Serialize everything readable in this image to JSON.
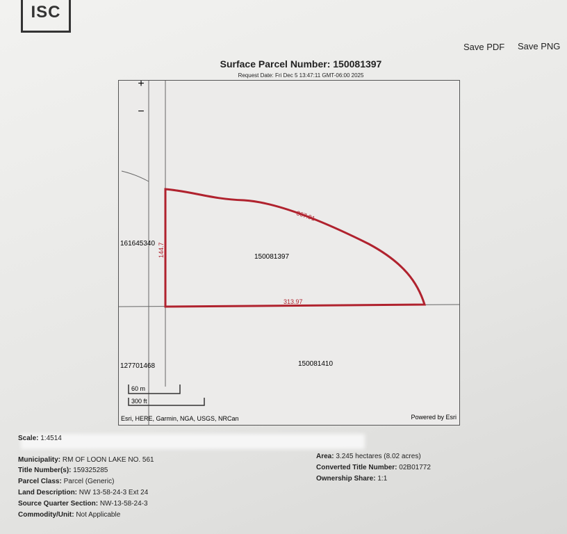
{
  "header": {
    "logo": "ISC",
    "save_pdf": "Save PDF",
    "save_png": "Save PNG",
    "title": "Surface Parcel Number: 150081397",
    "request_date": "Request Date: Fri Dec 5 13:47:11 GMT-06:00 2025"
  },
  "map": {
    "zoom_in": "+",
    "zoom_out": "−",
    "parcels": [
      "161645340",
      "150081397",
      "127701468",
      "150081410"
    ],
    "dimensions": [
      "367.91",
      "144.7",
      "313.97"
    ],
    "scale_bar": [
      "60 m",
      "300 ft"
    ],
    "attribution": "Esri, HERE, Garmin, NGA, USGS, NRCan",
    "powered_by": "Powered by Esri"
  },
  "details": {
    "left": [
      [
        "Scale:",
        "1:4514"
      ],
      [
        "Municipality:",
        "RM OF LOON LAKE NO. 561"
      ],
      [
        "Title Number(s):",
        "159325285"
      ],
      [
        "Parcel Class:",
        "Parcel (Generic)"
      ],
      [
        "Land Description:",
        "NW 13-58-24-3 Ext 24"
      ],
      [
        "Source Quarter Section:",
        "NW-13-58-24-3"
      ],
      [
        "Commodity/Unit:",
        "Not Applicable"
      ]
    ],
    "right": [
      [
        "Area:",
        "3.245 hectares (8.02 acres)"
      ],
      [
        "Converted Title Number:",
        "02B01772"
      ],
      [
        "Ownership Share:",
        "1:1"
      ]
    ]
  }
}
